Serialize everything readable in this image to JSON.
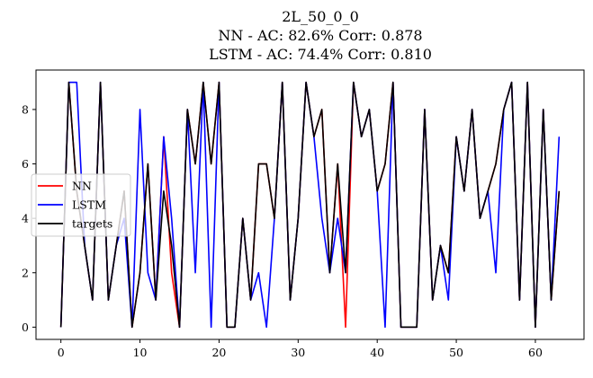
{
  "chart_data": {
    "type": "line",
    "title_lines": [
      "2L_50_0_0",
      "NN - AC: 82.6% Corr: 0.878",
      "LSTM - AC: 74.4% Corr: 0.810"
    ],
    "xlabel": "",
    "ylabel": "",
    "xlim": [
      -3.15,
      66.15
    ],
    "ylim": [
      -0.45,
      9.45
    ],
    "xticks": [
      0,
      10,
      20,
      30,
      40,
      50,
      60
    ],
    "yticks": [
      0,
      2,
      4,
      6,
      8
    ],
    "grid": false,
    "legend": {
      "position": "center-left"
    },
    "x": [
      0,
      1,
      2,
      3,
      4,
      5,
      6,
      7,
      8,
      9,
      10,
      11,
      12,
      13,
      14,
      15,
      16,
      17,
      18,
      19,
      20,
      21,
      22,
      23,
      24,
      25,
      26,
      27,
      28,
      29,
      30,
      31,
      32,
      33,
      34,
      35,
      36,
      37,
      38,
      39,
      40,
      41,
      42,
      43,
      44,
      45,
      46,
      47,
      48,
      49,
      50,
      51,
      52,
      53,
      54,
      55,
      56,
      57,
      58,
      59,
      60,
      61,
      62,
      63
    ],
    "series": [
      {
        "name": "NN",
        "color": "#ff0000",
        "values": [
          0,
          9,
          5,
          3,
          1,
          9,
          1,
          3,
          5,
          0,
          2,
          6,
          1,
          7,
          2,
          0,
          8,
          6,
          9,
          6,
          9,
          0,
          0,
          4,
          1,
          6,
          6,
          4,
          9,
          1,
          4,
          9,
          7,
          8,
          2,
          6,
          0,
          9,
          7,
          8,
          5,
          6,
          9,
          0,
          0,
          0,
          8,
          1,
          3,
          2,
          7,
          5,
          8,
          4,
          5,
          6,
          8,
          9,
          1,
          9,
          0,
          8,
          1,
          5
        ]
      },
      {
        "name": "LSTM",
        "color": "#0000ff",
        "values": [
          0,
          9,
          9,
          3,
          1,
          9,
          1,
          3,
          4,
          0,
          8,
          2,
          1,
          7,
          4,
          0,
          8,
          2,
          9,
          0,
          9,
          0,
          0,
          4,
          1,
          2,
          0,
          4,
          9,
          1,
          4,
          9,
          7,
          4,
          2,
          4,
          2,
          9,
          7,
          8,
          5,
          0,
          9,
          0,
          0,
          0,
          8,
          1,
          3,
          1,
          7,
          5,
          8,
          4,
          5,
          2,
          8,
          9,
          1,
          9,
          0,
          8,
          1,
          7
        ]
      },
      {
        "name": "targets",
        "color": "#000000",
        "values": [
          0,
          9,
          5,
          3,
          1,
          9,
          1,
          3,
          5,
          0,
          2,
          6,
          1,
          5,
          3,
          0,
          8,
          6,
          9,
          6,
          9,
          0,
          0,
          4,
          1,
          6,
          6,
          4,
          9,
          1,
          4,
          9,
          7,
          8,
          2,
          6,
          2,
          9,
          7,
          8,
          5,
          6,
          9,
          0,
          0,
          0,
          8,
          1,
          3,
          2,
          7,
          5,
          8,
          4,
          5,
          6,
          8,
          9,
          1,
          9,
          0,
          8,
          1,
          5
        ]
      }
    ]
  }
}
